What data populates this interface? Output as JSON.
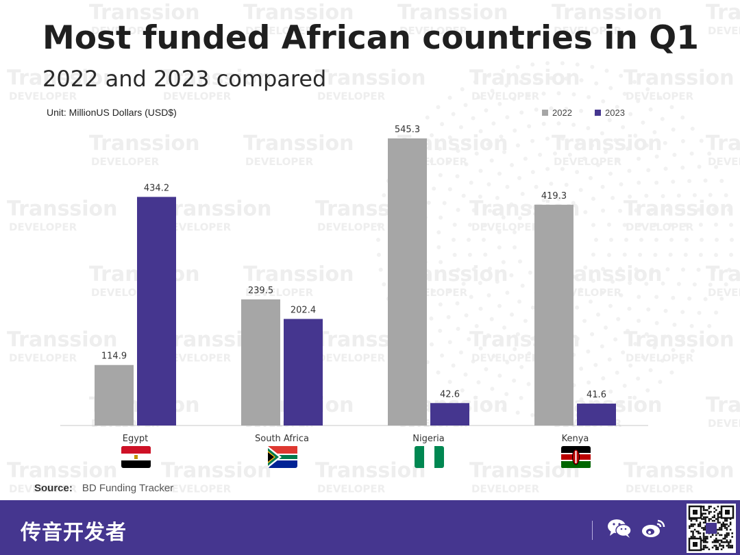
{
  "title": "Most funded African countries in Q1",
  "subtitle": "2022 and 2023 compared",
  "unit": "Unit: MillionUS Dollars (USD$)",
  "source_label": "Source:",
  "source_value": "BD Funding Tracker",
  "watermark": {
    "line1": "Transsion",
    "line2": "DEVELOPER"
  },
  "brand": "传音开发者",
  "colors": {
    "2022": "#a6a6a6",
    "2023": "#45368f",
    "footer": "#45368f"
  },
  "footer_icons": [
    "wechat-icon",
    "weibo-icon",
    "qr-code-icon"
  ],
  "chart_data": {
    "type": "bar",
    "title": "Most funded African countries in Q1",
    "subtitle": "2022 and 2023 compared",
    "ylabel": "Unit: MillionUS Dollars (USD$)",
    "ylim": [
      0,
      560
    ],
    "grid": false,
    "legend": "top-right",
    "categories": [
      "Egypt",
      "South Africa",
      "Nigeria",
      "Kenya"
    ],
    "series": [
      {
        "name": "2022",
        "values": [
          114.9,
          239.5,
          545.3,
          419.3
        ]
      },
      {
        "name": "2023",
        "values": [
          434.2,
          202.4,
          42.6,
          41.6
        ]
      }
    ]
  }
}
